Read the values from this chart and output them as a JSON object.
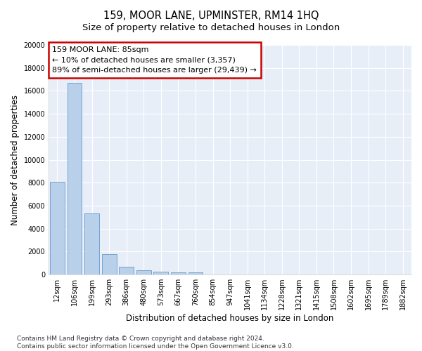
{
  "title": "159, MOOR LANE, UPMINSTER, RM14 1HQ",
  "subtitle": "Size of property relative to detached houses in London",
  "xlabel": "Distribution of detached houses by size in London",
  "ylabel": "Number of detached properties",
  "categories": [
    "12sqm",
    "106sqm",
    "199sqm",
    "293sqm",
    "386sqm",
    "480sqm",
    "573sqm",
    "667sqm",
    "760sqm",
    "854sqm",
    "947sqm",
    "1041sqm",
    "1134sqm",
    "1228sqm",
    "1321sqm",
    "1415sqm",
    "1508sqm",
    "1602sqm",
    "1695sqm",
    "1789sqm",
    "1882sqm"
  ],
  "values": [
    8100,
    16700,
    5350,
    1750,
    650,
    370,
    270,
    190,
    190,
    0,
    0,
    0,
    0,
    0,
    0,
    0,
    0,
    0,
    0,
    0,
    0
  ],
  "bar_color": "#b8d0ea",
  "bar_edge_color": "#6699cc",
  "annotation_text": "159 MOOR LANE: 85sqm\n← 10% of detached houses are smaller (3,357)\n89% of semi-detached houses are larger (29,439) →",
  "annotation_box_color": "#ffffff",
  "annotation_border_color": "#cc0000",
  "ylim": [
    0,
    20000
  ],
  "yticks": [
    0,
    2000,
    4000,
    6000,
    8000,
    10000,
    12000,
    14000,
    16000,
    18000,
    20000
  ],
  "plot_bg_color": "#e8eef8",
  "fig_bg_color": "#ffffff",
  "grid_color": "#ffffff",
  "footnote": "Contains HM Land Registry data © Crown copyright and database right 2024.\nContains public sector information licensed under the Open Government Licence v3.0.",
  "title_fontsize": 10.5,
  "subtitle_fontsize": 9.5,
  "xlabel_fontsize": 8.5,
  "ylabel_fontsize": 8.5,
  "tick_fontsize": 7,
  "annotation_fontsize": 8,
  "footnote_fontsize": 6.5
}
